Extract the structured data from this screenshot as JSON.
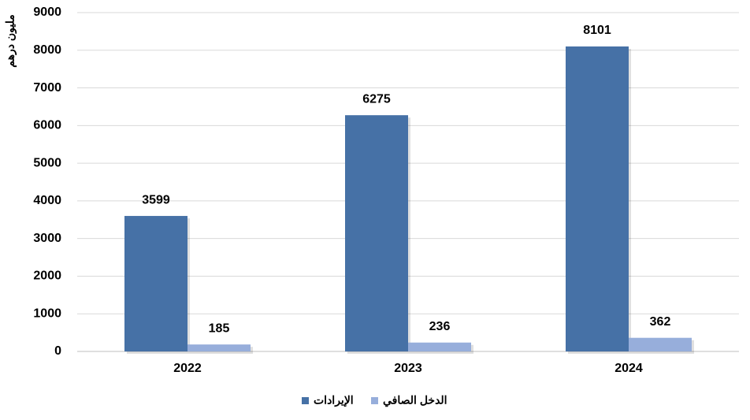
{
  "chart_data": {
    "type": "bar",
    "y_label": "مليون درهم",
    "categories": [
      "2022",
      "2023",
      "2024"
    ],
    "series": [
      {
        "name": "الإيرادات",
        "color": "#4671a6",
        "values": [
          3599,
          6275,
          8101
        ]
      },
      {
        "name": "الدخل الصافي",
        "color": "#97aedb",
        "values": [
          185,
          236,
          362
        ]
      }
    ],
    "ylim": [
      0,
      9000
    ],
    "yticks": [
      0,
      1000,
      2000,
      3000,
      4000,
      5000,
      6000,
      7000,
      8000,
      9000
    ],
    "grid": true
  }
}
